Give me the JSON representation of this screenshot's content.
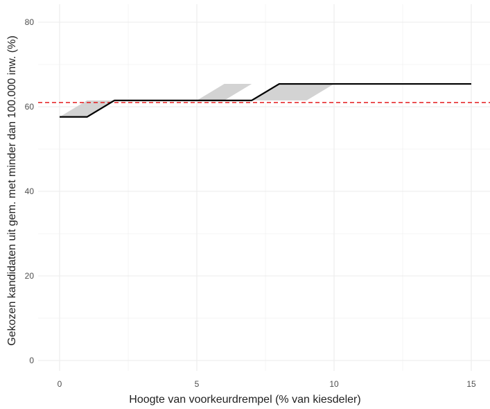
{
  "chart_data": {
    "type": "line",
    "xlabel": "Hoogte van voorkeurdrempel (% van kiesdeler)",
    "ylabel": "Gekozen kandidaten uit gem. met minder dan 100.000 inw. (%)",
    "xlim": [
      -0.75,
      15.75
    ],
    "ylim": [
      -2,
      84
    ],
    "x_ticks": [
      0,
      5,
      10,
      15
    ],
    "y_ticks": [
      0,
      20,
      40,
      60,
      80
    ],
    "grid": true,
    "series": [
      {
        "values": [
          [
            0,
            57.6
          ],
          [
            1,
            57.6
          ],
          [
            2,
            61.5
          ],
          [
            3,
            61.5
          ],
          [
            4,
            61.5
          ],
          [
            5,
            61.5
          ],
          [
            6,
            61.5
          ],
          [
            7,
            61.5
          ],
          [
            8,
            65.4
          ],
          [
            9,
            65.4
          ],
          [
            10,
            65.4
          ],
          [
            11,
            65.4
          ],
          [
            12,
            65.4
          ],
          [
            13,
            65.4
          ],
          [
            14,
            65.4
          ],
          [
            15,
            65.4
          ]
        ]
      }
    ],
    "bands": [
      {
        "points": [
          [
            0,
            57.6
          ],
          [
            1,
            61.5
          ],
          [
            2,
            61.5
          ],
          [
            1,
            57.6
          ]
        ]
      },
      {
        "points": [
          [
            5,
            61.5
          ],
          [
            6,
            65.4
          ],
          [
            7,
            65.4
          ],
          [
            6,
            61.5
          ]
        ]
      },
      {
        "points": [
          [
            7,
            61.5
          ],
          [
            8,
            65.4
          ],
          [
            10,
            65.4
          ],
          [
            9,
            61.5
          ]
        ]
      }
    ],
    "reference_line": {
      "y": 61.0,
      "color": "#e41a1c",
      "style": "dashed"
    },
    "colors": {
      "line": "#000000",
      "band": "#d3d3d3",
      "grid": "#ebebeb",
      "tick_text": "#4d4d4d"
    }
  }
}
